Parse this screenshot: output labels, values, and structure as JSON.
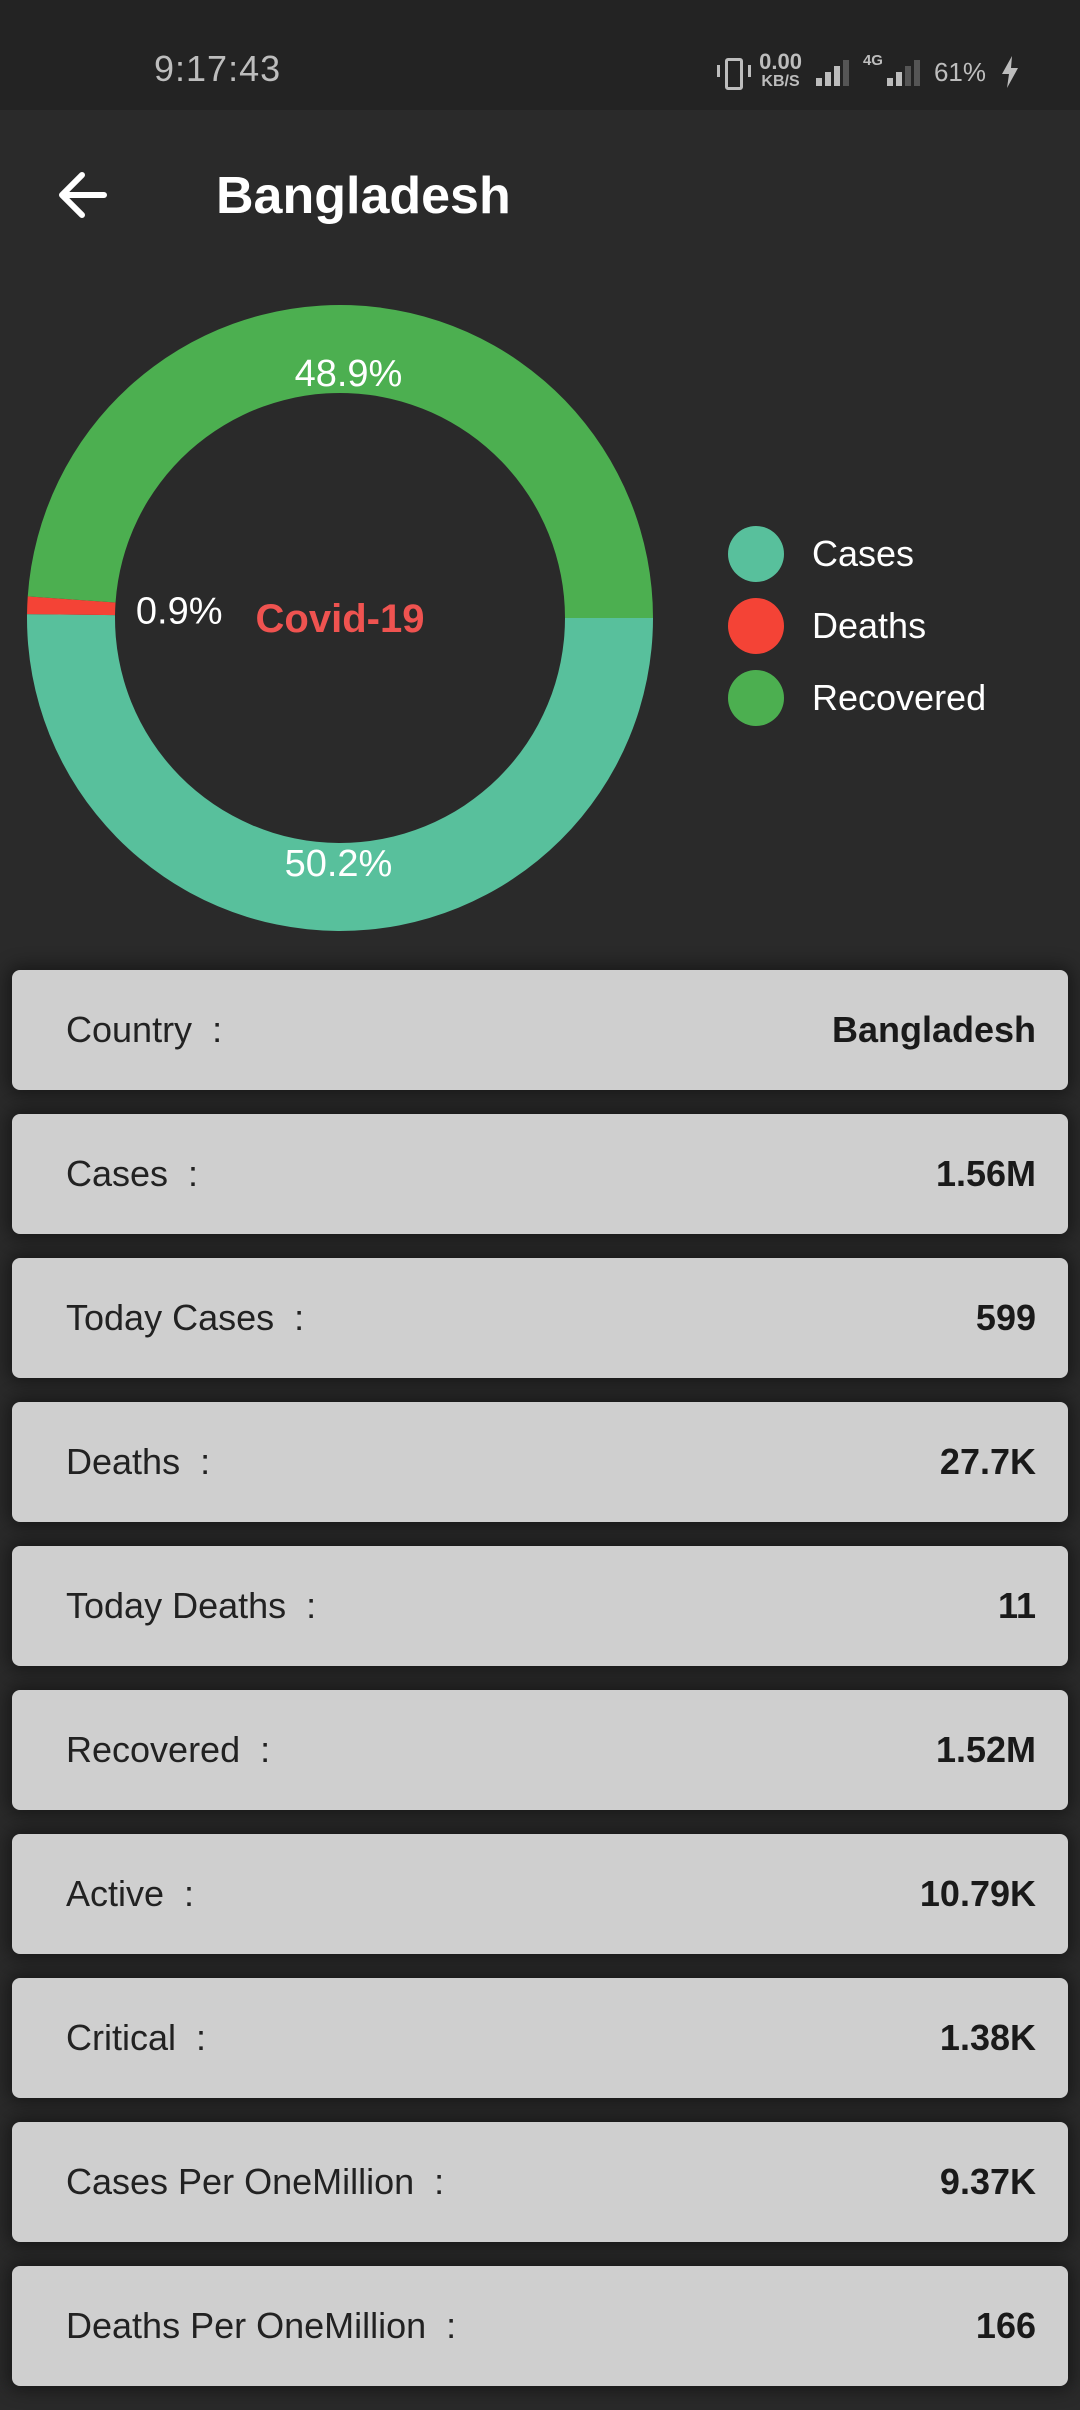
{
  "status_bar": {
    "time": "9:17:43",
    "net_speed_value": "0.00",
    "net_speed_unit": "KB/S",
    "network_type": "4G",
    "battery": "61%"
  },
  "app_bar": {
    "title": "Bangladesh",
    "back_icon": "arrow-left-icon"
  },
  "chart_data": {
    "type": "pie",
    "center_label": "Covid-19",
    "categories": [
      "Cases",
      "Deaths",
      "Recovered"
    ],
    "values": [
      50.2,
      0.9,
      48.9
    ],
    "value_labels": [
      "50.2%",
      "0.9%",
      "48.9%"
    ],
    "colors": [
      "#58c09c",
      "#f44336",
      "#4caf50"
    ],
    "legend_placement": "right"
  },
  "stats": [
    {
      "label": "Country",
      "value": "Bangladesh"
    },
    {
      "label": "Cases",
      "value": "1.56M"
    },
    {
      "label": "Today Cases",
      "value": "599"
    },
    {
      "label": "Deaths",
      "value": "27.7K"
    },
    {
      "label": "Today Deaths",
      "value": "11"
    },
    {
      "label": "Recovered",
      "value": "1.52M"
    },
    {
      "label": "Active",
      "value": "10.79K"
    },
    {
      "label": "Critical",
      "value": "1.38K"
    },
    {
      "label": "Cases Per OneMillion",
      "value": "9.37K"
    },
    {
      "label": "Deaths Per OneMillion",
      "value": "166"
    }
  ]
}
